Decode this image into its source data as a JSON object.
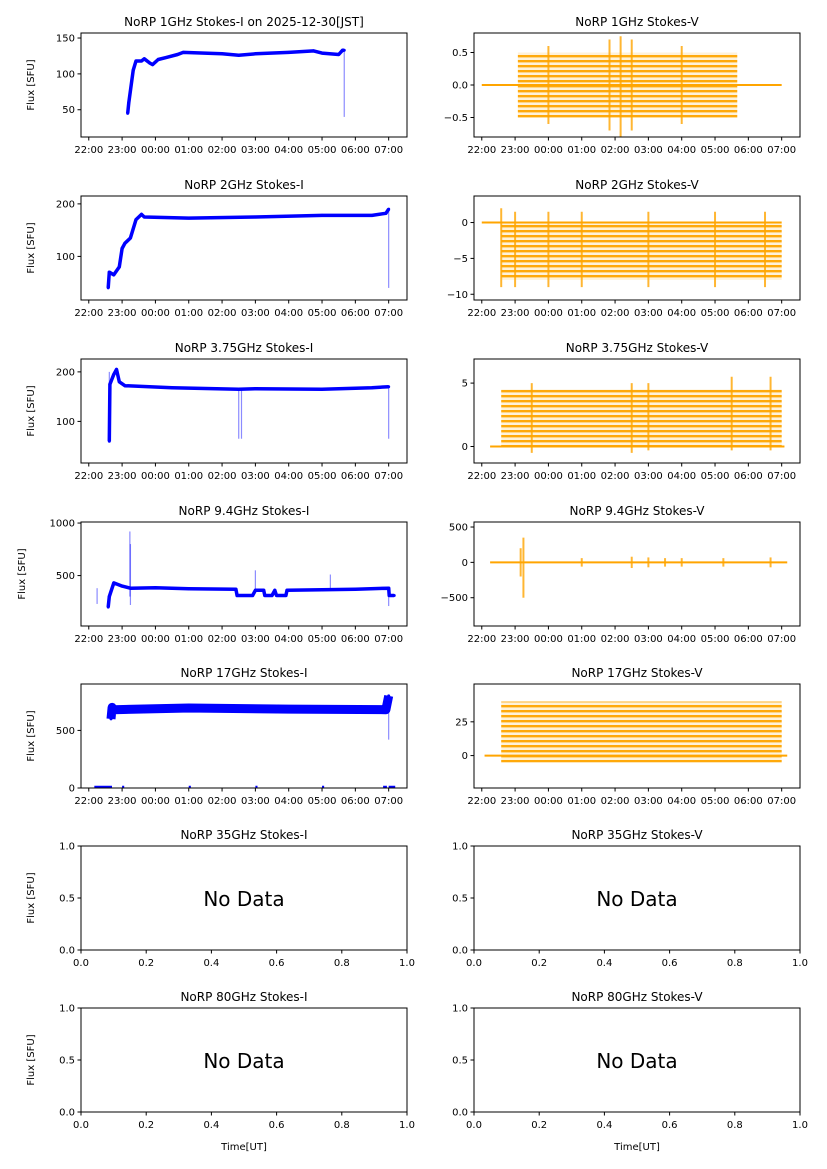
{
  "colors": {
    "stokes_i": "#0000ff",
    "stokes_v": "#ffa500"
  },
  "time_ticks": [
    "22:00",
    "23:00",
    "00:00",
    "01:00",
    "02:00",
    "03:00",
    "04:00",
    "05:00",
    "06:00",
    "07:00"
  ],
  "time_xlim": [
    "21:46",
    "07:33"
  ],
  "unit_ticks": [
    "0.0",
    "0.2",
    "0.4",
    "0.6",
    "0.8",
    "1.0"
  ],
  "xlabel": "Time[UT]",
  "chart_data": [
    {
      "type": "scatter",
      "title": "NoRP 1GHz Stokes-I on 2025-12-30[JST]",
      "ylabel": "Flux [SFU]",
      "ylim": [
        12,
        157
      ],
      "yticks": [
        50,
        100,
        150
      ],
      "ytick_labels": [
        "50",
        "100",
        "150"
      ],
      "grid": false,
      "series": [
        [
          "23:10",
          45
        ],
        [
          "23:12",
          60
        ],
        [
          "23:20",
          105
        ],
        [
          "23:25",
          118
        ],
        [
          "23:35",
          118
        ],
        [
          "23:40",
          121
        ],
        [
          "23:50",
          115
        ],
        [
          "23:55",
          113
        ],
        [
          "00:05",
          120
        ],
        [
          "00:20",
          123
        ],
        [
          "00:40",
          127
        ],
        [
          "00:50",
          130
        ],
        [
          "02:00",
          128
        ],
        [
          "02:30",
          126
        ],
        [
          "03:00",
          128
        ],
        [
          "04:00",
          130
        ],
        [
          "04:45",
          132
        ],
        [
          "05:00",
          129
        ],
        [
          "05:30",
          127
        ],
        [
          "05:37",
          133
        ],
        [
          "05:40",
          133
        ]
      ],
      "spikes": [
        [
          "05:40",
          40,
          133
        ]
      ]
    },
    {
      "type": "scatter",
      "title": "NoRP 1GHz Stokes-V",
      "ylabel": "",
      "ylim": [
        -0.8,
        0.8
      ],
      "yticks": [
        0.5,
        0,
        -0.5
      ],
      "ytick_labels": [
        "0.5",
        "0.0",
        "−0.5"
      ],
      "grid": false,
      "zero": [
        "22:00",
        "07:00"
      ],
      "band": {
        "from": "23:05",
        "to": "05:40",
        "min": -0.5,
        "max": 0.5
      },
      "spikes": [
        [
          "01:50",
          -0.7,
          0.7
        ],
        [
          "02:10",
          -0.8,
          0.75
        ],
        [
          "02:30",
          -0.7,
          0.7
        ],
        [
          "00:00",
          -0.6,
          0.6
        ],
        [
          "04:00",
          -0.6,
          0.6
        ]
      ]
    },
    {
      "type": "scatter",
      "title": "NoRP 2GHz Stokes-I",
      "ylabel": "Flux [SFU]",
      "ylim": [
        17,
        215
      ],
      "yticks": [
        100,
        200
      ],
      "ytick_labels": [
        "100",
        "200"
      ],
      "grid": false,
      "series": [
        [
          "22:35",
          40
        ],
        [
          "22:37",
          70
        ],
        [
          "22:45",
          65
        ],
        [
          "22:55",
          80
        ],
        [
          "23:00",
          115
        ],
        [
          "23:05",
          125
        ],
        [
          "23:15",
          135
        ],
        [
          "23:25",
          170
        ],
        [
          "23:35",
          180
        ],
        [
          "23:40",
          175
        ],
        [
          "01:00",
          173
        ],
        [
          "03:00",
          175
        ],
        [
          "05:00",
          178
        ],
        [
          "06:30",
          178
        ],
        [
          "06:55",
          182
        ],
        [
          "07:00",
          190
        ]
      ],
      "spikes": [
        [
          "07:00",
          40,
          190
        ]
      ]
    },
    {
      "type": "scatter",
      "title": "NoRP 2GHz Stokes-V",
      "ylabel": "",
      "ylim": [
        -10.8,
        3.7
      ],
      "yticks": [
        0,
        -5,
        -10
      ],
      "ytick_labels": [
        "0",
        "−5",
        "−10"
      ],
      "grid": false,
      "zero": [
        "22:00",
        "07:00"
      ],
      "band": {
        "from": "22:35",
        "to": "07:00",
        "min": -8,
        "max": 0
      },
      "spikes": [
        [
          "22:35",
          -9,
          2
        ],
        [
          "23:00",
          -9,
          1.5
        ],
        [
          "00:00",
          -9,
          1.5
        ],
        [
          "01:00",
          -9,
          1.5
        ],
        [
          "03:00",
          -9,
          1.5
        ],
        [
          "05:00",
          -9,
          1.5
        ],
        [
          "06:30",
          -9,
          1.5
        ]
      ]
    },
    {
      "type": "scatter",
      "title": "NoRP 3.75GHz Stokes-I",
      "ylabel": "Flux [SFU]",
      "ylim": [
        16,
        226
      ],
      "yticks": [
        100,
        200
      ],
      "ytick_labels": [
        "100",
        "200"
      ],
      "grid": false,
      "series": [
        [
          "22:37",
          60
        ],
        [
          "22:38",
          175
        ],
        [
          "22:45",
          195
        ],
        [
          "22:50",
          205
        ],
        [
          "22:55",
          180
        ],
        [
          "23:05",
          172
        ],
        [
          "00:30",
          168
        ],
        [
          "02:30",
          165
        ],
        [
          "03:00",
          166
        ],
        [
          "05:00",
          165
        ],
        [
          "06:30",
          168
        ],
        [
          "07:00",
          170
        ]
      ],
      "spikes": [
        [
          "22:37",
          60,
          200
        ],
        [
          "02:30",
          65,
          165
        ],
        [
          "02:35",
          65,
          165
        ],
        [
          "07:00",
          65,
          170
        ]
      ]
    },
    {
      "type": "scatter",
      "title": "NoRP 3.75GHz Stokes-V",
      "ylabel": "",
      "ylim": [
        -1.3,
        6.9
      ],
      "yticks": [
        5,
        0
      ],
      "ytick_labels": [
        "5",
        "0"
      ],
      "grid": false,
      "zero": [
        "22:15",
        "07:05"
      ],
      "band": {
        "from": "22:35",
        "to": "07:00",
        "min": 0,
        "max": 4.5
      },
      "spikes": [
        [
          "23:30",
          -0.5,
          5
        ],
        [
          "02:30",
          -0.5,
          5
        ],
        [
          "03:00",
          -0.3,
          5
        ],
        [
          "05:30",
          -0.3,
          5.5
        ],
        [
          "06:40",
          -0.3,
          5.5
        ]
      ]
    },
    {
      "type": "scatter",
      "title": "NoRP 9.4GHz Stokes-I",
      "ylabel": "Flux [SFU]",
      "ylim": [
        20,
        1010
      ],
      "yticks": [
        500,
        1000
      ],
      "ytick_labels": [
        "500",
        "1000"
      ],
      "grid": false,
      "series": [
        [
          "22:35",
          200
        ],
        [
          "22:37",
          300
        ],
        [
          "22:45",
          430
        ],
        [
          "23:00",
          400
        ],
        [
          "23:15",
          380
        ],
        [
          "00:00",
          385
        ],
        [
          "01:00",
          375
        ],
        [
          "02:25",
          370
        ],
        [
          "02:27",
          310
        ],
        [
          "02:55",
          310
        ],
        [
          "03:00",
          360
        ],
        [
          "03:15",
          360
        ],
        [
          "03:17",
          310
        ],
        [
          "03:30",
          310
        ],
        [
          "03:35",
          360
        ],
        [
          "03:38",
          310
        ],
        [
          "03:55",
          310
        ],
        [
          "03:57",
          360
        ],
        [
          "05:00",
          365
        ],
        [
          "06:00",
          370
        ],
        [
          "07:00",
          380
        ],
        [
          "07:01",
          310
        ],
        [
          "07:10",
          310
        ]
      ],
      "spikes": [
        [
          "22:15",
          230,
          380
        ],
        [
          "23:15",
          220,
          800
        ],
        [
          "23:14",
          300,
          920
        ],
        [
          "03:00",
          360,
          550
        ],
        [
          "05:15",
          360,
          510
        ],
        [
          "07:00",
          210,
          380
        ]
      ]
    },
    {
      "type": "scatter",
      "title": "NoRP 9.4GHz Stokes-V",
      "ylabel": "",
      "ylim": [
        -900,
        571
      ],
      "yticks": [
        500,
        0,
        -500
      ],
      "ytick_labels": [
        "500",
        "0",
        "−500"
      ],
      "grid": false,
      "zero": [
        "22:15",
        "07:10"
      ],
      "spikes": [
        [
          "23:15",
          -500,
          350
        ],
        [
          "23:10",
          -200,
          200
        ],
        [
          "01:00",
          -60,
          60
        ],
        [
          "02:30",
          -80,
          80
        ],
        [
          "03:00",
          -70,
          70
        ],
        [
          "03:30",
          -60,
          60
        ],
        [
          "04:00",
          -60,
          60
        ],
        [
          "05:15",
          -60,
          60
        ],
        [
          "06:40",
          -70,
          70
        ]
      ]
    },
    {
      "type": "scatter",
      "title": "NoRP 17GHz Stokes-I",
      "ylabel": "Flux [SFU]",
      "ylim": [
        0,
        903
      ],
      "yticks": [
        0,
        500
      ],
      "ytick_labels": [
        "0",
        "500"
      ],
      "grid": false,
      "series": [
        [
          "22:40",
          600
        ],
        [
          "22:42",
          700
        ],
        [
          "22:45",
          680
        ],
        [
          "01:00",
          695
        ],
        [
          "04:00",
          685
        ],
        [
          "06:55",
          680
        ],
        [
          "07:00",
          800
        ]
      ],
      "spikes": [
        [
          "07:00",
          420,
          800
        ]
      ],
      "floor": [
        [
          "22:10",
          "22:40"
        ],
        [
          "23:00",
          "23:02"
        ],
        [
          "01:00",
          "01:02"
        ],
        [
          "03:00",
          "03:02"
        ],
        [
          "05:00",
          "05:02"
        ],
        [
          "06:50",
          "06:55"
        ],
        [
          "07:00",
          "07:10"
        ]
      ]
    },
    {
      "type": "scatter",
      "title": "NoRP 17GHz Stokes-V",
      "ylabel": "",
      "ylim": [
        -24,
        53
      ],
      "yticks": [
        25,
        0
      ],
      "ytick_labels": [
        "25",
        "0"
      ],
      "grid": false,
      "zero": [
        "22:05",
        "07:10"
      ],
      "band": {
        "from": "22:35",
        "to": "07:00",
        "min": -5,
        "max": 40
      }
    },
    {
      "type": "scatter",
      "title": "NoRP 35GHz Stokes-I",
      "ylabel": "Flux [SFU]",
      "xlim": [
        0,
        1
      ],
      "ylim": [
        0,
        1
      ],
      "yticks": [
        0,
        0.5,
        1
      ],
      "ytick_labels": [
        "0.0",
        "0.5",
        "1.0"
      ],
      "no_data": "No Data"
    },
    {
      "type": "scatter",
      "title": "NoRP 35GHz Stokes-V",
      "ylabel": "",
      "xlim": [
        0,
        1
      ],
      "ylim": [
        0,
        1
      ],
      "yticks": [
        0,
        0.5,
        1
      ],
      "ytick_labels": [
        "0.0",
        "0.5",
        "1.0"
      ],
      "no_data": "No Data"
    },
    {
      "type": "scatter",
      "title": "NoRP 80GHz Stokes-I",
      "ylabel": "Flux [SFU]",
      "xlim": [
        0,
        1
      ],
      "ylim": [
        0,
        1
      ],
      "yticks": [
        0,
        0.5,
        1
      ],
      "ytick_labels": [
        "0.0",
        "0.5",
        "1.0"
      ],
      "no_data": "No Data"
    },
    {
      "type": "scatter",
      "title": "NoRP 80GHz Stokes-V",
      "ylabel": "",
      "xlim": [
        0,
        1
      ],
      "ylim": [
        0,
        1
      ],
      "yticks": [
        0,
        0.5,
        1
      ],
      "ytick_labels": [
        "0.0",
        "0.5",
        "1.0"
      ],
      "no_data": "No Data"
    }
  ]
}
